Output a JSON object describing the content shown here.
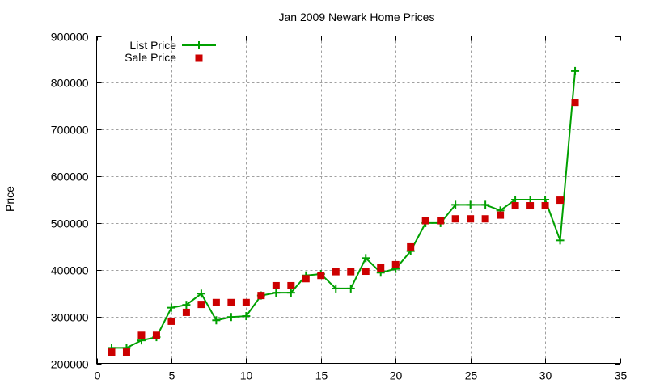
{
  "chart_data": {
    "type": "line",
    "title": "Jan 2009 Newark Home Prices",
    "xlabel": "",
    "ylabel": "Price",
    "xlim": [
      0,
      35
    ],
    "ylim": [
      200000,
      900000
    ],
    "x_ticks": [
      0,
      5,
      10,
      15,
      20,
      25,
      30,
      35
    ],
    "y_ticks": [
      200000,
      300000,
      400000,
      500000,
      600000,
      700000,
      800000,
      900000
    ],
    "grid": true,
    "legend_position": "top-left",
    "x": [
      1,
      2,
      3,
      4,
      5,
      6,
      7,
      8,
      9,
      10,
      11,
      12,
      13,
      14,
      15,
      16,
      17,
      18,
      19,
      20,
      21,
      22,
      23,
      24,
      25,
      26,
      27,
      28,
      29,
      30,
      31,
      32
    ],
    "series": [
      {
        "name": "List Price",
        "style": "line+plus-markers",
        "color": "#00a000",
        "values": [
          233000,
          233000,
          249000,
          256000,
          319000,
          325000,
          349000,
          292000,
          299000,
          301000,
          345000,
          351000,
          351000,
          388000,
          391000,
          360000,
          360000,
          425000,
          394000,
          402000,
          440000,
          500000,
          500000,
          539000,
          539000,
          539000,
          527000,
          550000,
          550000,
          550000,
          463000,
          825000
        ]
      },
      {
        "name": "Sale Price",
        "style": "square-markers",
        "color": "#cc0000",
        "values": [
          224000,
          224000,
          260000,
          260000,
          290000,
          309000,
          326000,
          330000,
          330000,
          330000,
          345000,
          366000,
          366000,
          381000,
          388000,
          396000,
          396000,
          397000,
          404000,
          411000,
          449000,
          505000,
          505000,
          509000,
          509000,
          509000,
          517000,
          537000,
          537000,
          537000,
          549000,
          758000
        ]
      }
    ]
  }
}
